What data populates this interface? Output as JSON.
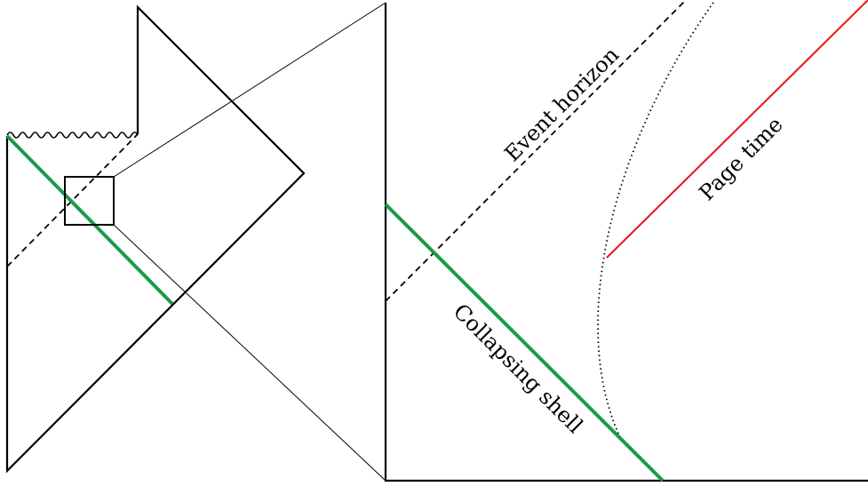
{
  "labels": {
    "event_horizon": "Event horizon",
    "page_time": "Page time",
    "collapsing_shell": "Collapsing shell"
  },
  "colors": {
    "line": "#000000",
    "shell": "#1a9a4a",
    "page_time": "#e8141a"
  }
}
